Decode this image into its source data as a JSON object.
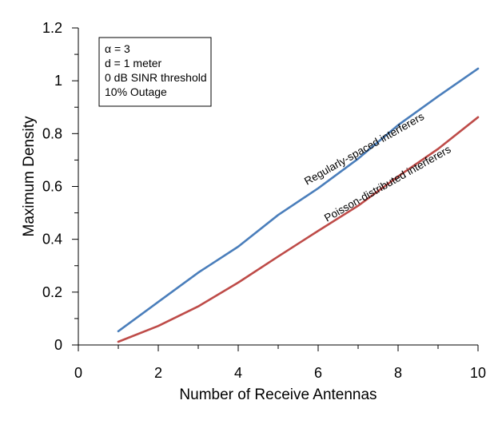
{
  "chart_data": {
    "type": "line",
    "title": "",
    "xlabel": "Number of Receive Antennas",
    "ylabel": "Maximum Density",
    "xlim": [
      0,
      10
    ],
    "ylim": [
      0,
      1.2
    ],
    "x_ticks": [
      0,
      2,
      4,
      6,
      8,
      10
    ],
    "y_ticks": [
      0,
      0.2,
      0.4,
      0.6,
      0.8,
      1,
      1.2
    ],
    "x_tick_labels": [
      "0",
      "2",
      "4",
      "6",
      "8",
      "10"
    ],
    "y_tick_labels": [
      "0",
      "0.2",
      "0.4",
      "0.6",
      "0.8",
      "1",
      "1.2"
    ],
    "x_minor_step": 1,
    "y_minor_step": 0.1,
    "grid": false,
    "legend_box": {
      "position": "top-left",
      "lines": [
        "α = 3",
        "d = 1 meter",
        "0 dB SINR threshold",
        "10% Outage"
      ]
    },
    "series": [
      {
        "name": "Regularly-spaced interferers",
        "color": "#4a7ebb",
        "x": [
          1,
          2,
          3,
          4,
          5,
          6,
          7,
          8,
          9,
          10
        ],
        "values": [
          0.052,
          0.163,
          0.274,
          0.372,
          0.492,
          0.593,
          0.705,
          0.832,
          0.941,
          1.046
        ]
      },
      {
        "name": "Poisson-distributed interferers",
        "color": "#be4b48",
        "x": [
          1,
          2,
          3,
          4,
          5,
          6,
          7,
          8,
          9,
          10
        ],
        "values": [
          0.012,
          0.072,
          0.146,
          0.236,
          0.335,
          0.432,
          0.527,
          0.638,
          0.742,
          0.862
        ]
      }
    ]
  }
}
